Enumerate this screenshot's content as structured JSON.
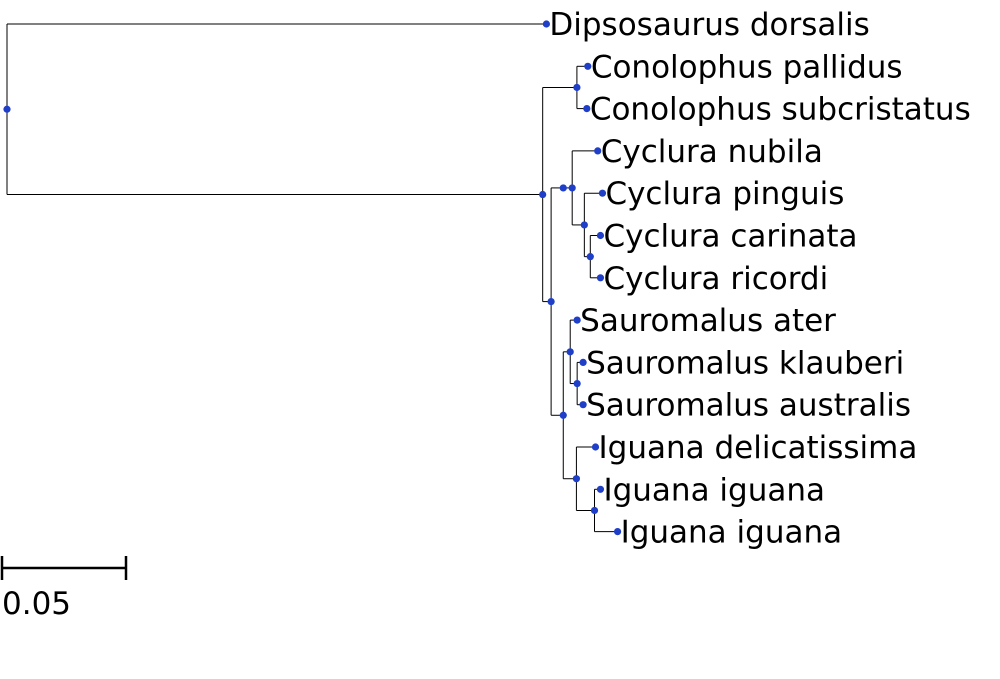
{
  "colors": {
    "node": "#1f3fc8",
    "branch": "#000000",
    "text": "#000000",
    "background": "#ffffff"
  },
  "scale_bar": {
    "value": 0.05,
    "label": "0.05"
  },
  "tree": {
    "children": [
      {
        "name": "Dipsosaurus dorsalis",
        "length": 0.2175
      },
      {
        "length": 0.216,
        "children": [
          {
            "length": 0.0138,
            "children": [
              {
                "name": "Conolophus pallidus",
                "length": 0.0044
              },
              {
                "name": "Conolophus subcristatus",
                "length": 0.004
              }
            ]
          },
          {
            "length": 0.0034,
            "children": [
              {
                "length": 0.0049,
                "children": [
                  {
                    "length": 0.0036,
                    "children": [
                      {
                        "name": "Cyclura nubila",
                        "length": 0.0103
                      },
                      {
                        "length": 0.0049,
                        "children": [
                          {
                            "name": "Cyclura pinguis",
                            "length": 0.0073
                          },
                          {
                            "length": 0.0024,
                            "children": [
                              {
                                "name": "Cyclura carinata",
                                "length": 0.0041
                              },
                              {
                                "name": "Cyclura ricordi",
                                "length": 0.0041
                              }
                            ]
                          }
                        ]
                      }
                    ]
                  }
                ]
              },
              {
                "length": 0.0049,
                "children": [
                  {
                    "length": 0.0028,
                    "children": [
                      {
                        "name": "Sauromalus ater",
                        "length": 0.0028
                      },
                      {
                        "length": 0.0028,
                        "children": [
                          {
                            "name": "Sauromalus klauberi",
                            "length": 0.0024
                          },
                          {
                            "name": "Sauromalus australis",
                            "length": 0.0024
                          }
                        ]
                      }
                    ]
                  },
                  {
                    "length": 0.0053,
                    "children": [
                      {
                        "name": "Iguana delicatissima",
                        "length": 0.0077
                      },
                      {
                        "length": 0.0073,
                        "children": [
                          {
                            "name": "Iguana iguana",
                            "length": 0.0024
                          },
                          {
                            "name": "Iguana iguana",
                            "length": 0.0093
                          }
                        ]
                      }
                    ]
                  }
                ]
              }
            ]
          }
        ]
      }
    ]
  }
}
